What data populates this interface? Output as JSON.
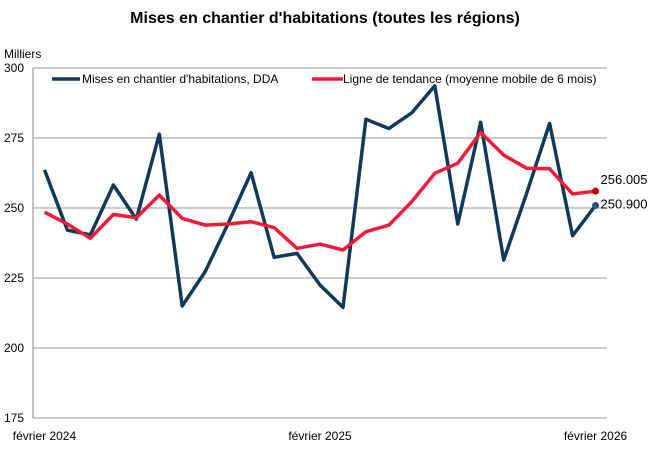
{
  "chart_data": {
    "type": "line",
    "title": "Mises en chantier d'habitations (toutes les régions)",
    "ylabel": "Milliers",
    "xlabel": "",
    "ylim": [
      175,
      300
    ],
    "yticks": [
      175,
      200,
      225,
      250,
      275,
      300
    ],
    "x_tick_labels": [
      {
        "index": 0,
        "label": "février 2024"
      },
      {
        "index": 12,
        "label": "février 2025"
      },
      {
        "index": 24,
        "label": "février 2026"
      }
    ],
    "x": [
      "2024-02",
      "2024-03",
      "2024-04",
      "2024-05",
      "2024-06",
      "2024-07",
      "2024-08",
      "2024-09",
      "2024-10",
      "2024-11",
      "2024-12",
      "2025-01",
      "2025-02",
      "2025-03",
      "2025-04",
      "2025-05",
      "2025-06",
      "2025-07",
      "2025-08",
      "2025-09",
      "2025-10",
      "2025-11",
      "2025-12",
      "2026-01",
      "2026-02"
    ],
    "grid": "horizontal",
    "legend": "top",
    "series": [
      {
        "name": "Mises en chantier d'habitations, DDA",
        "color": "#12395a",
        "values": [
          263.6,
          242.1,
          240.4,
          258.2,
          246.0,
          276.4,
          215.0,
          227.3,
          244.5,
          262.6,
          232.4,
          233.8,
          222.5,
          214.5,
          281.7,
          278.4,
          284.0,
          293.6,
          244.3,
          280.6,
          231.4,
          255.2,
          280.2,
          240.1,
          250.9
        ],
        "last_label": "250.900"
      },
      {
        "name": "Ligne de tendance (moyenne mobile de 6 mois)",
        "color": "#ee1c3a",
        "values": [
          248.5,
          244.3,
          239.2,
          247.7,
          246.5,
          254.6,
          246.3,
          243.9,
          244.3,
          245.1,
          243.0,
          235.6,
          237.1,
          235.0,
          241.5,
          243.9,
          252.3,
          262.4,
          266.0,
          277.0,
          268.9,
          264.2,
          264.0,
          255.0,
          256.005
        ],
        "last_label": "256.005"
      }
    ]
  }
}
